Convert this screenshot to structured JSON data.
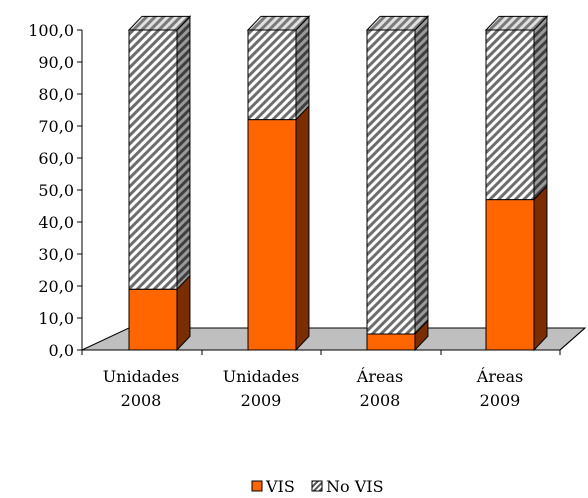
{
  "chart_data": {
    "type": "bar",
    "stacked": true,
    "style": "3d-stacked-100",
    "title": "",
    "xlabel": "",
    "ylabel": "",
    "ylim": [
      0,
      100
    ],
    "ytick_step": 10,
    "ytick_labels": [
      "0,0",
      "10,0",
      "20,0",
      "30,0",
      "40,0",
      "50,0",
      "60,0",
      "70,0",
      "80,0",
      "90,0",
      "100,0"
    ],
    "categories": [
      [
        "Unidades",
        "2008"
      ],
      [
        "Unidades",
        "2009"
      ],
      [
        "Áreas",
        "2008"
      ],
      [
        "Áreas",
        "2009"
      ]
    ],
    "series": [
      {
        "name": "VIS",
        "values": [
          19,
          72,
          5,
          47
        ],
        "color": "#FF6600"
      },
      {
        "name": "No VIS",
        "values": [
          81,
          28,
          95,
          53
        ],
        "color": "#A6A6A6",
        "pattern": "diagonal-hatch"
      }
    ],
    "legend": {
      "position": "bottom"
    },
    "grid": false
  }
}
